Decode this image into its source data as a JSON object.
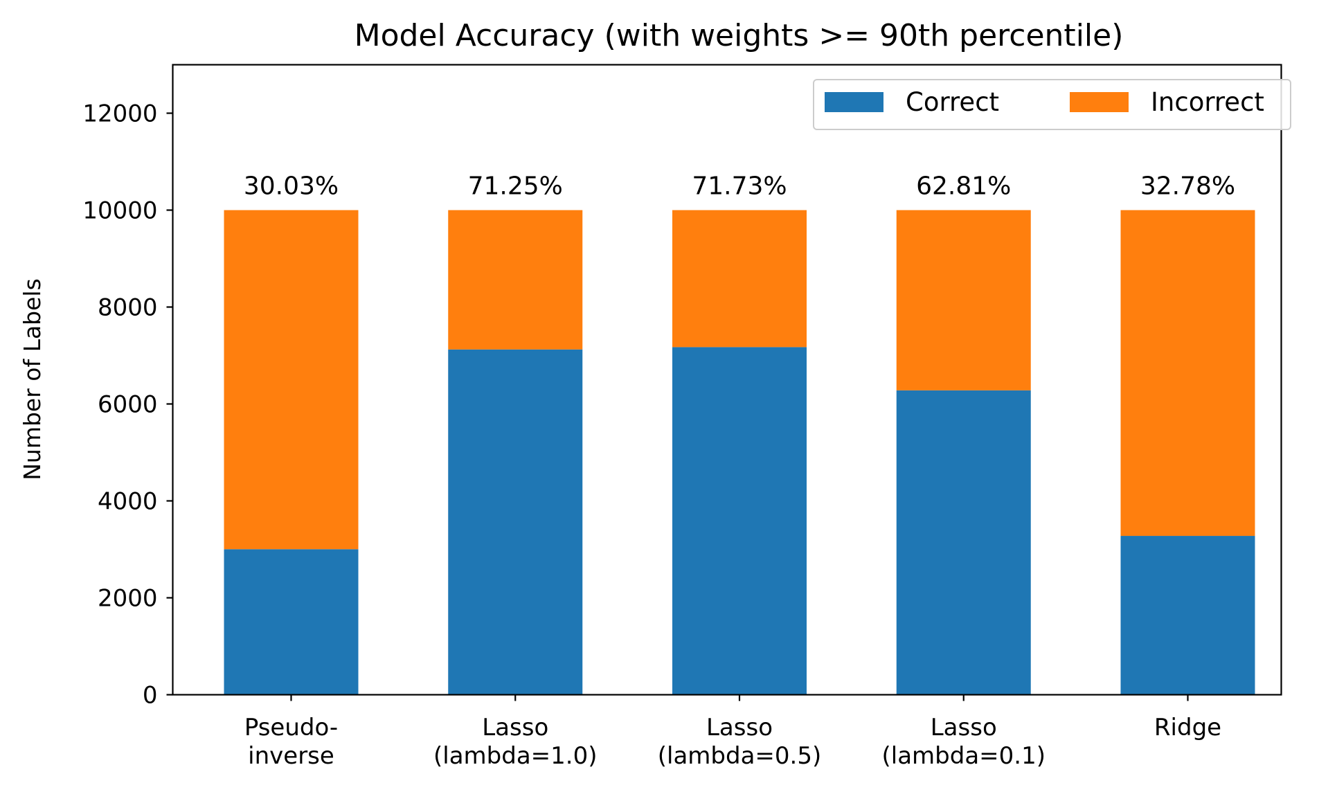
{
  "chart_data": {
    "type": "bar",
    "stacked": true,
    "title": "Model Accuracy (with weights >= 90th percentile)",
    "xlabel": "",
    "ylabel": "Number of Labels",
    "ylim": [
      0,
      13000
    ],
    "yticks": [
      0,
      2000,
      4000,
      6000,
      8000,
      10000,
      12000
    ],
    "grid": false,
    "legend_position": "top-right",
    "categories": [
      [
        "Pseudo-",
        "inverse"
      ],
      [
        "Lasso",
        "(lambda=1.0)"
      ],
      [
        "Lasso",
        "(lambda=0.5)"
      ],
      [
        "Lasso",
        "(lambda=0.1)"
      ],
      [
        "Ridge"
      ]
    ],
    "series": [
      {
        "name": "Correct",
        "color": "#1f77b4",
        "values": [
          3003,
          7125,
          7173,
          6281,
          3278
        ]
      },
      {
        "name": "Incorrect",
        "color": "#ff7f0e",
        "values": [
          6997,
          2875,
          2827,
          3719,
          6722
        ]
      }
    ],
    "annotations": [
      "30.03%",
      "71.25%",
      "71.73%",
      "62.81%",
      "32.78%"
    ]
  }
}
